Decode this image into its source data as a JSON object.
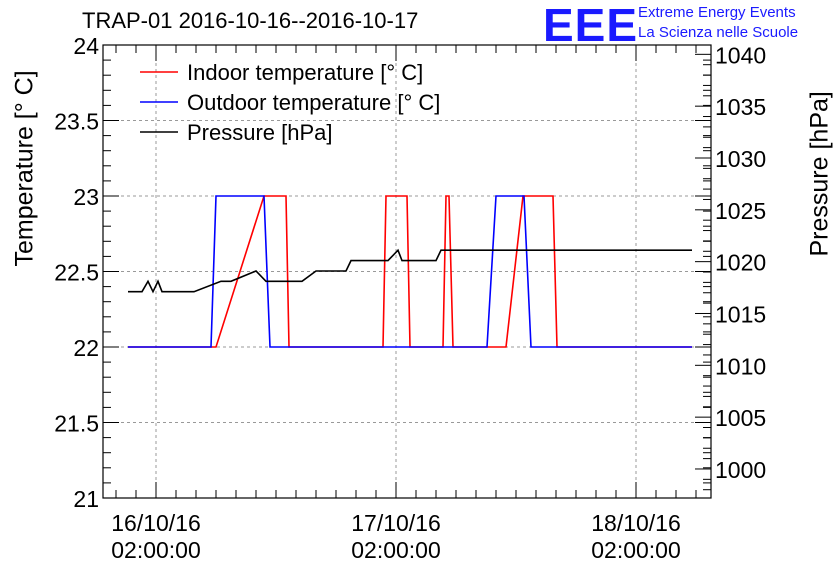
{
  "header": {
    "title": "TRAP-01 2016-10-16--2016-10-17",
    "logo_text": "EEE",
    "logo_line1": "Extreme Energy Events",
    "logo_line2": "La Scienza nelle Scuole"
  },
  "colors": {
    "indoor": "#ff0000",
    "outdoor": "#0000ff",
    "pressure": "#000000",
    "logo": "#1a1aff",
    "grid": "#999999"
  },
  "chart_data": {
    "type": "line",
    "title": "TRAP-01 2016-10-16--2016-10-17",
    "xlabel": "",
    "ylabel_left": "Temperature [° C]",
    "ylabel_right": "Pressure [hPa]",
    "x_unit": "hours since 16/10/16 00:00",
    "xlim": [
      -3.3,
      57.5
    ],
    "ylim_left": [
      21,
      24
    ],
    "ylim_right": [
      997.2,
      1040.9
    ],
    "x_ticks": [
      {
        "x": 2,
        "date": "16/10/16",
        "time": "02:00:00"
      },
      {
        "x": 26,
        "date": "17/10/16",
        "time": "02:00:00"
      },
      {
        "x": 50,
        "date": "18/10/16",
        "time": "02:00:00"
      }
    ],
    "y_left_ticks": [
      21,
      21.5,
      22,
      22.5,
      23,
      23.5,
      24
    ],
    "y_left_tick_labels": [
      "21",
      "21.5",
      "22",
      "22.5",
      "23",
      "23.5",
      "24"
    ],
    "y_right_ticks": [
      1000,
      1005,
      1010,
      1015,
      1020,
      1025,
      1030,
      1035,
      1040
    ],
    "y_right_tick_labels": [
      "1000",
      "1005",
      "1010",
      "1015",
      "1020",
      "1025",
      "1030",
      "1035",
      "1040"
    ],
    "legend_position": "top-left",
    "grid": true,
    "series": [
      {
        "name": "Indoor temperature [° C]",
        "axis": "left",
        "color": "#ff0000",
        "x": [
          -0.8,
          7.5,
          8.0,
          12.8,
          13.8,
          15.0,
          15.3,
          24.7,
          25.0,
          27.1,
          27.4,
          30.7,
          31.0,
          31.3,
          31.7,
          32.1,
          37.0,
          38.7,
          41.7,
          42.1,
          55.6
        ],
        "y": [
          22.0,
          22.0,
          22.0,
          23.0,
          23.0,
          23.0,
          22.0,
          22.0,
          23.0,
          23.0,
          22.0,
          22.0,
          23.0,
          23.0,
          22.0,
          22.0,
          22.0,
          23.0,
          23.0,
          22.0,
          22.0
        ]
      },
      {
        "name": "Outdoor temperature [° C]",
        "axis": "left",
        "color": "#0000ff",
        "x": [
          -0.8,
          7.5,
          8.0,
          12.8,
          13.4,
          35.1,
          36.0,
          38.8,
          39.5,
          55.6
        ],
        "y": [
          22.0,
          22.0,
          23.0,
          23.0,
          22.0,
          22.0,
          23.0,
          23.0,
          22.0,
          22.0
        ]
      },
      {
        "name": "Pressure [hPa]",
        "axis": "right",
        "color": "#000000",
        "x": [
          -0.8,
          0.6,
          1.2,
          1.7,
          2.2,
          2.6,
          3.0,
          5.8,
          8.5,
          9.5,
          12.0,
          13.0,
          16.0,
          16.6,
          18.0,
          18.5,
          21.0,
          21.5,
          22.0,
          25.2,
          26.2,
          26.6,
          30.0,
          30.5,
          55.6
        ],
        "y": [
          1017.1,
          1017.1,
          1018.1,
          1017.1,
          1018.1,
          1017.1,
          1017.1,
          1017.1,
          1018.1,
          1018.1,
          1019.1,
          1018.1,
          1018.1,
          1018.1,
          1019.1,
          1019.1,
          1019.1,
          1020.1,
          1020.1,
          1020.1,
          1021.1,
          1020.1,
          1020.1,
          1021.1,
          1021.1
        ]
      }
    ]
  }
}
